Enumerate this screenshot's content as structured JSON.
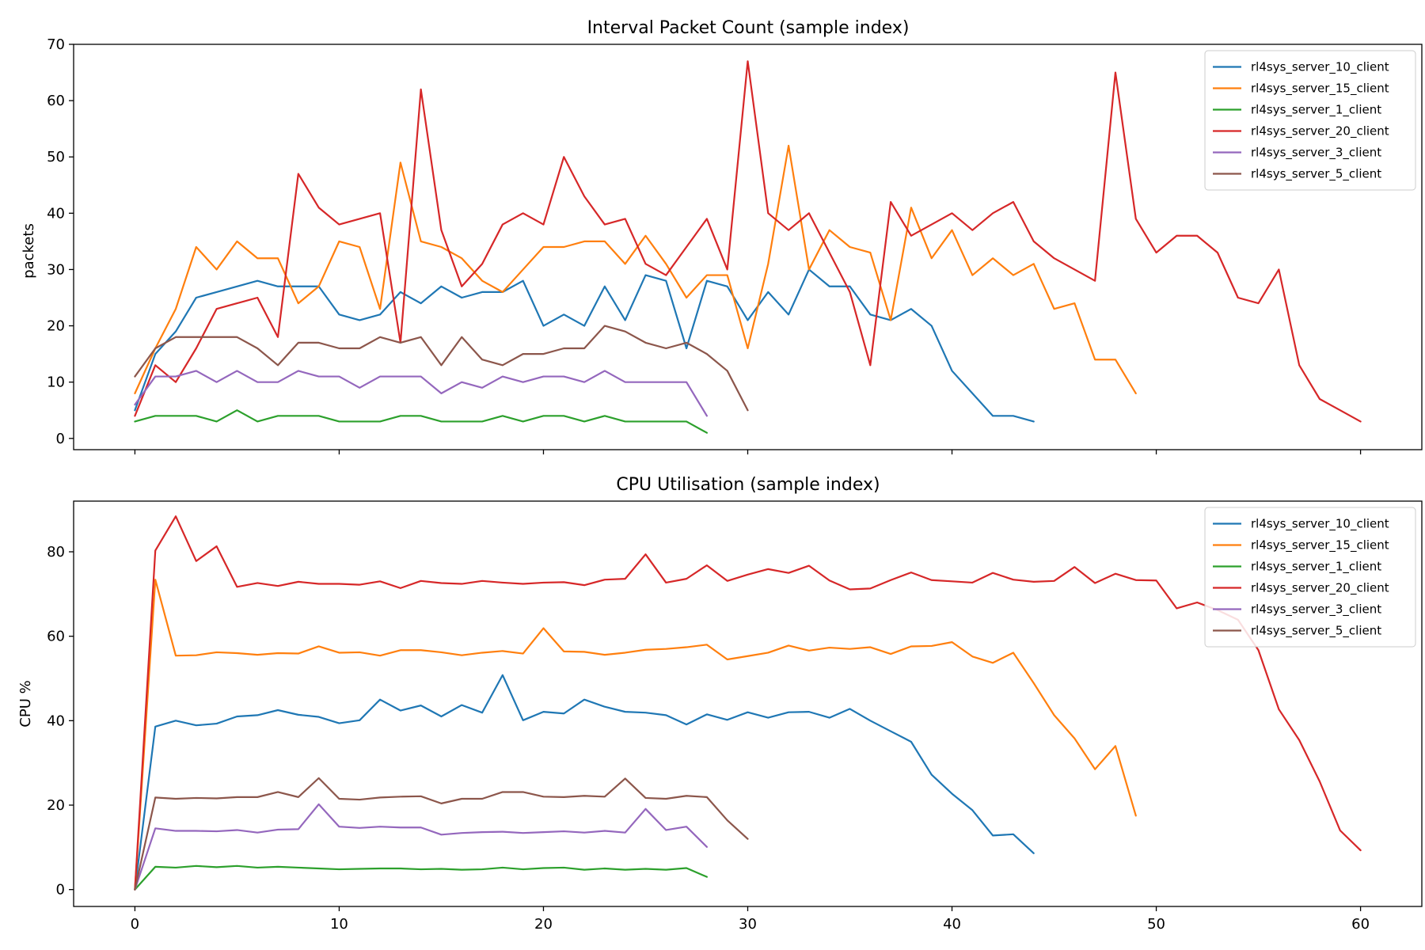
{
  "chart_data": [
    {
      "type": "line",
      "title": "Interval Packet Count (sample index)",
      "xlabel": "",
      "ylabel": "packets",
      "xlim": [
        -3,
        63
      ],
      "ylim": [
        -2,
        70
      ],
      "xticks": [
        0,
        10,
        20,
        30,
        40,
        50,
        60
      ],
      "yticks": [
        0,
        10,
        20,
        30,
        40,
        50,
        60,
        70
      ],
      "show_xticklabels": false,
      "grid": false,
      "legend_position": "top-right",
      "series": [
        {
          "name": "rl4sys_server_10_client",
          "color": "#1f77b4",
          "values": [
            5,
            15,
            19,
            25,
            26,
            27,
            28,
            27,
            27,
            27,
            22,
            21,
            22,
            26,
            24,
            27,
            25,
            26,
            26,
            28,
            20,
            22,
            20,
            27,
            21,
            29,
            28,
            16,
            28,
            27,
            21,
            26,
            22,
            30,
            27,
            27,
            22,
            21,
            23,
            20,
            12,
            8,
            4,
            4,
            3
          ]
        },
        {
          "name": "rl4sys_server_15_client",
          "color": "#ff7f0e",
          "values": [
            8,
            16,
            23,
            34,
            30,
            35,
            32,
            32,
            24,
            27,
            35,
            34,
            23,
            49,
            35,
            34,
            32,
            28,
            26,
            30,
            34,
            34,
            35,
            35,
            31,
            36,
            31,
            25,
            29,
            29,
            16,
            31,
            52,
            30,
            37,
            34,
            33,
            21,
            41,
            32,
            37,
            29,
            32,
            29,
            31,
            23,
            24,
            14,
            14,
            8
          ]
        },
        {
          "name": "rl4sys_server_1_client",
          "color": "#2ca02c",
          "values": [
            3,
            4,
            4,
            4,
            3,
            5,
            3,
            4,
            4,
            4,
            3,
            3,
            3,
            4,
            4,
            3,
            3,
            3,
            4,
            3,
            4,
            4,
            3,
            4,
            3,
            3,
            3,
            3,
            1
          ]
        },
        {
          "name": "rl4sys_server_20_client",
          "color": "#d62728",
          "values": [
            4,
            13,
            10,
            16,
            23,
            24,
            25,
            18,
            47,
            41,
            38,
            39,
            40,
            17,
            62,
            37,
            27,
            31,
            38,
            40,
            38,
            50,
            43,
            38,
            39,
            31,
            29,
            34,
            39,
            30,
            67,
            40,
            37,
            40,
            33,
            26,
            13,
            42,
            36,
            38,
            40,
            37,
            40,
            42,
            35,
            32,
            30,
            28,
            65,
            39,
            33,
            36,
            36,
            33,
            25,
            24,
            30,
            13,
            7,
            5,
            3
          ]
        },
        {
          "name": "rl4sys_server_3_client",
          "color": "#9467bd",
          "values": [
            6,
            11,
            11,
            12,
            10,
            12,
            10,
            10,
            12,
            11,
            11,
            9,
            11,
            11,
            11,
            8,
            10,
            9,
            11,
            10,
            11,
            11,
            10,
            12,
            10,
            10,
            10,
            10,
            4
          ]
        },
        {
          "name": "rl4sys_server_5_client",
          "color": "#8c564b",
          "values": [
            11,
            16,
            18,
            18,
            18,
            18,
            16,
            13,
            17,
            17,
            16,
            16,
            18,
            17,
            18,
            13,
            18,
            14,
            13,
            15,
            15,
            16,
            16,
            20,
            19,
            17,
            16,
            17,
            15,
            12,
            5
          ]
        }
      ]
    },
    {
      "type": "line",
      "title": "CPU Utilisation (sample index)",
      "xlabel": "",
      "ylabel": "CPU %",
      "xlim": [
        -3,
        63
      ],
      "ylim": [
        -4,
        92
      ],
      "xticks": [
        0,
        10,
        20,
        30,
        40,
        50,
        60
      ],
      "yticks": [
        0,
        20,
        40,
        60,
        80
      ],
      "show_xticklabels": true,
      "grid": false,
      "legend_position": "top-right",
      "series": [
        {
          "name": "rl4sys_server_10_client",
          "color": "#1f77b4",
          "values": [
            0,
            38.6,
            40,
            38.9,
            39.3,
            41,
            41.3,
            42.5,
            41.4,
            40.9,
            39.4,
            40.1,
            45,
            42.4,
            43.6,
            41,
            43.7,
            41.9,
            50.8,
            40.1,
            42.1,
            41.7,
            45,
            43.3,
            42.1,
            41.9,
            41.3,
            39.1,
            41.5,
            40.2,
            42,
            40.7,
            42,
            42.1,
            40.7,
            42.8,
            40,
            37.5,
            35,
            27.2,
            22.7,
            18.8,
            12.8,
            13.1,
            8.6
          ]
        },
        {
          "name": "rl4sys_server_15_client",
          "color": "#ff7f0e",
          "values": [
            0,
            73.4,
            55.4,
            55.5,
            56.2,
            56,
            55.6,
            56,
            55.9,
            57.6,
            56.1,
            56.2,
            55.4,
            56.7,
            56.7,
            56.2,
            55.5,
            56.1,
            56.5,
            55.9,
            61.9,
            56.4,
            56.3,
            55.6,
            56.1,
            56.8,
            57,
            57.4,
            58,
            54.5,
            55.3,
            56.1,
            57.8,
            56.6,
            57.3,
            57,
            57.4,
            55.8,
            57.6,
            57.7,
            58.6,
            55.2,
            53.7,
            56.1,
            48.9,
            41.3,
            35.8,
            28.5,
            34,
            17.5
          ]
        },
        {
          "name": "rl4sys_server_1_client",
          "color": "#2ca02c",
          "values": [
            0,
            5.4,
            5.2,
            5.6,
            5.3,
            5.6,
            5.2,
            5.4,
            5.2,
            5,
            4.8,
            4.9,
            5,
            5,
            4.8,
            4.9,
            4.7,
            4.8,
            5.2,
            4.8,
            5.1,
            5.2,
            4.7,
            5,
            4.7,
            4.9,
            4.7,
            5.1,
            3
          ]
        },
        {
          "name": "rl4sys_server_20_client",
          "color": "#d62728",
          "values": [
            0,
            80.3,
            88.4,
            77.8,
            81.3,
            71.7,
            72.6,
            71.9,
            72.9,
            72.4,
            72.4,
            72.2,
            73,
            71.4,
            73.1,
            72.6,
            72.4,
            73.1,
            72.7,
            72.4,
            72.7,
            72.8,
            72.1,
            73.4,
            73.6,
            79.4,
            72.7,
            73.6,
            76.8,
            73.1,
            74.6,
            75.9,
            75,
            76.7,
            73.2,
            71.1,
            71.3,
            73.3,
            75.1,
            73.3,
            73,
            72.7,
            75,
            73.4,
            72.9,
            73.1,
            76.4,
            72.6,
            74.8,
            73.3,
            73.2,
            66.6,
            68,
            66.2,
            63.9,
            56.7,
            42.7,
            35.4,
            25.6,
            14,
            9.3
          ]
        },
        {
          "name": "rl4sys_server_3_client",
          "color": "#9467bd",
          "values": [
            0,
            14.5,
            13.9,
            13.9,
            13.8,
            14.1,
            13.5,
            14.2,
            14.3,
            20.2,
            14.9,
            14.6,
            14.9,
            14.7,
            14.7,
            13,
            13.4,
            13.6,
            13.7,
            13.4,
            13.6,
            13.8,
            13.5,
            13.9,
            13.5,
            19.1,
            14.1,
            14.9,
            10.1
          ]
        },
        {
          "name": "rl4sys_server_5_client",
          "color": "#8c564b",
          "values": [
            0,
            21.8,
            21.5,
            21.7,
            21.6,
            21.9,
            21.9,
            23.1,
            21.9,
            26.4,
            21.5,
            21.3,
            21.8,
            22,
            22.1,
            20.4,
            21.5,
            21.5,
            23.1,
            23.1,
            22,
            21.9,
            22.2,
            22,
            26.3,
            21.7,
            21.5,
            22.2,
            21.9,
            16.4,
            12
          ]
        }
      ]
    }
  ]
}
